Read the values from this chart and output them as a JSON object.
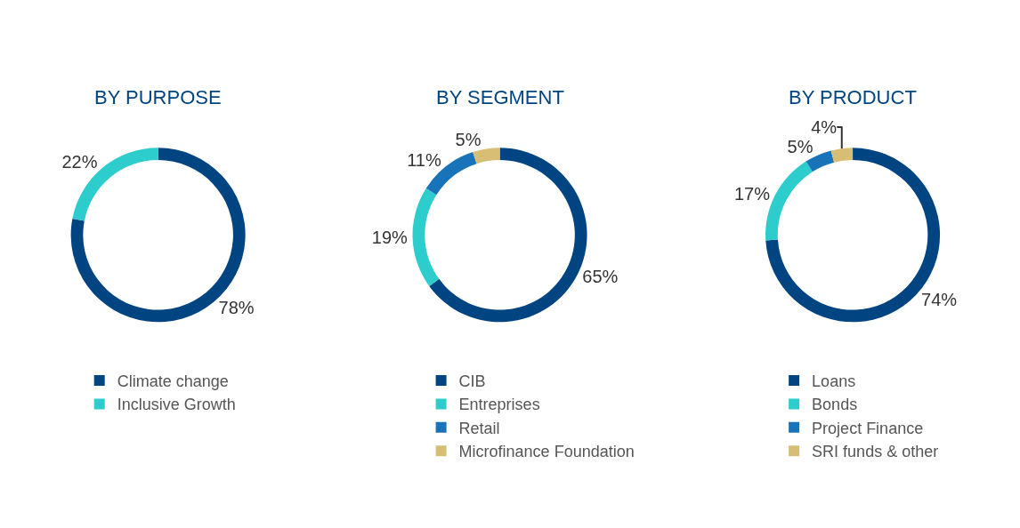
{
  "chart_data": [
    {
      "type": "donut",
      "title": "BY PURPOSE",
      "categories": [
        "Climate change",
        "Inclusive Growth"
      ],
      "values": [
        78,
        22
      ],
      "value_labels": [
        "78%",
        "22%"
      ],
      "colors": [
        "#004481",
        "#2dcccd"
      ],
      "legend": "bottom"
    },
    {
      "type": "donut",
      "title": "BY SEGMENT",
      "categories": [
        "CIB",
        "Entreprises",
        "Retail",
        "Microfinance Foundation"
      ],
      "values": [
        65,
        19,
        11,
        5
      ],
      "value_labels": [
        "65%",
        "19%",
        "11%",
        "5%"
      ],
      "colors": [
        "#004481",
        "#2dcccd",
        "#1973b8",
        "#d8be75"
      ],
      "legend": "bottom"
    },
    {
      "type": "donut",
      "title": "BY PRODUCT",
      "categories": [
        "Loans",
        "Bonds",
        "Project Finance",
        "SRI funds & other"
      ],
      "values": [
        74,
        17,
        5,
        4
      ],
      "value_labels": [
        "74%",
        "17%",
        "5%",
        "4%"
      ],
      "colors": [
        "#004481",
        "#2dcccd",
        "#1973b8",
        "#d8be75"
      ],
      "legend": "bottom"
    }
  ]
}
